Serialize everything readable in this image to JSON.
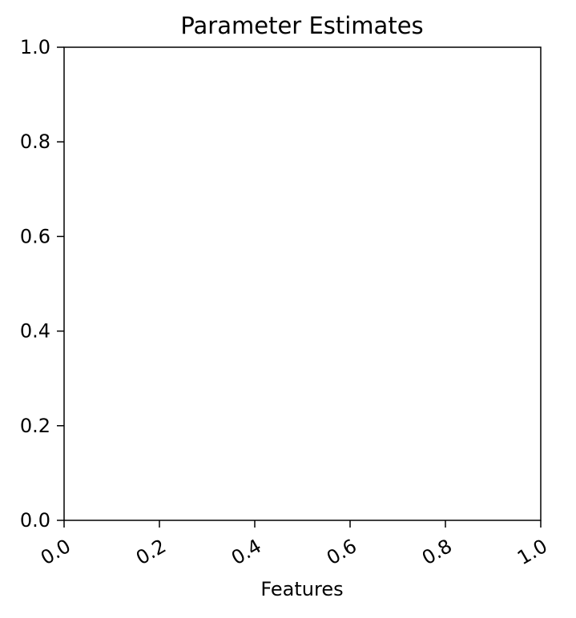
{
  "chart_data": {
    "type": "scatter",
    "title": "Parameter Estimates",
    "xlabel": "Features",
    "ylabel": "",
    "xlim": [
      0.0,
      1.0
    ],
    "ylim": [
      0.0,
      1.0
    ],
    "x_ticks": [
      0.0,
      0.2,
      0.4,
      0.6,
      0.8,
      1.0
    ],
    "x_tick_labels": [
      "0.0",
      "0.2",
      "0.4",
      "0.6",
      "0.8",
      "1.0"
    ],
    "y_ticks": [
      0.0,
      0.2,
      0.4,
      0.6,
      0.8,
      1.0
    ],
    "y_tick_labels": [
      "0.0",
      "0.2",
      "0.4",
      "0.6",
      "0.8",
      "1.0"
    ],
    "x_tick_label_rotation_deg": -30,
    "grid": false,
    "legend": "none",
    "series": [],
    "colors": {
      "axes": "#000000",
      "background": "#ffffff",
      "plot_background": "#ffffff"
    }
  }
}
